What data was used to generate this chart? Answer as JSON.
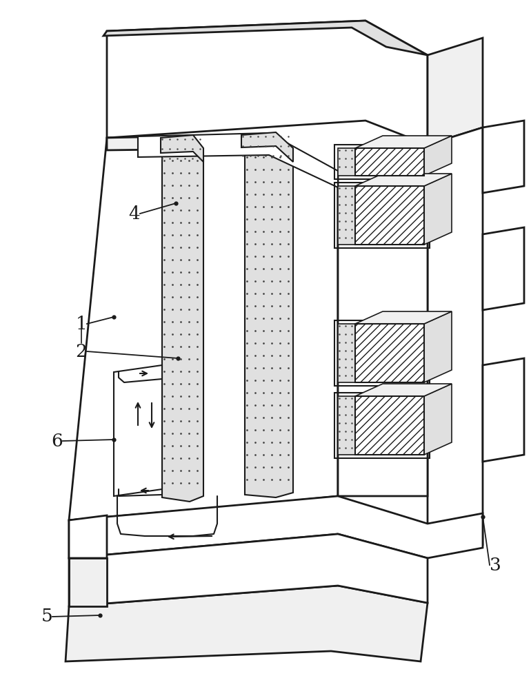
{
  "bg": "#ffffff",
  "lc": "#1a1a1a",
  "lw": 2.0,
  "lw2": 1.5,
  "lw3": 1.2,
  "fc_light": "#f0f0f0",
  "fc_mid": "#e0e0e0",
  "fc_dark": "#cccccc",
  "fc_white": "#ffffff",
  "dot_c": "#444444",
  "label_fs": 19,
  "label_c": "#1a1a1a"
}
